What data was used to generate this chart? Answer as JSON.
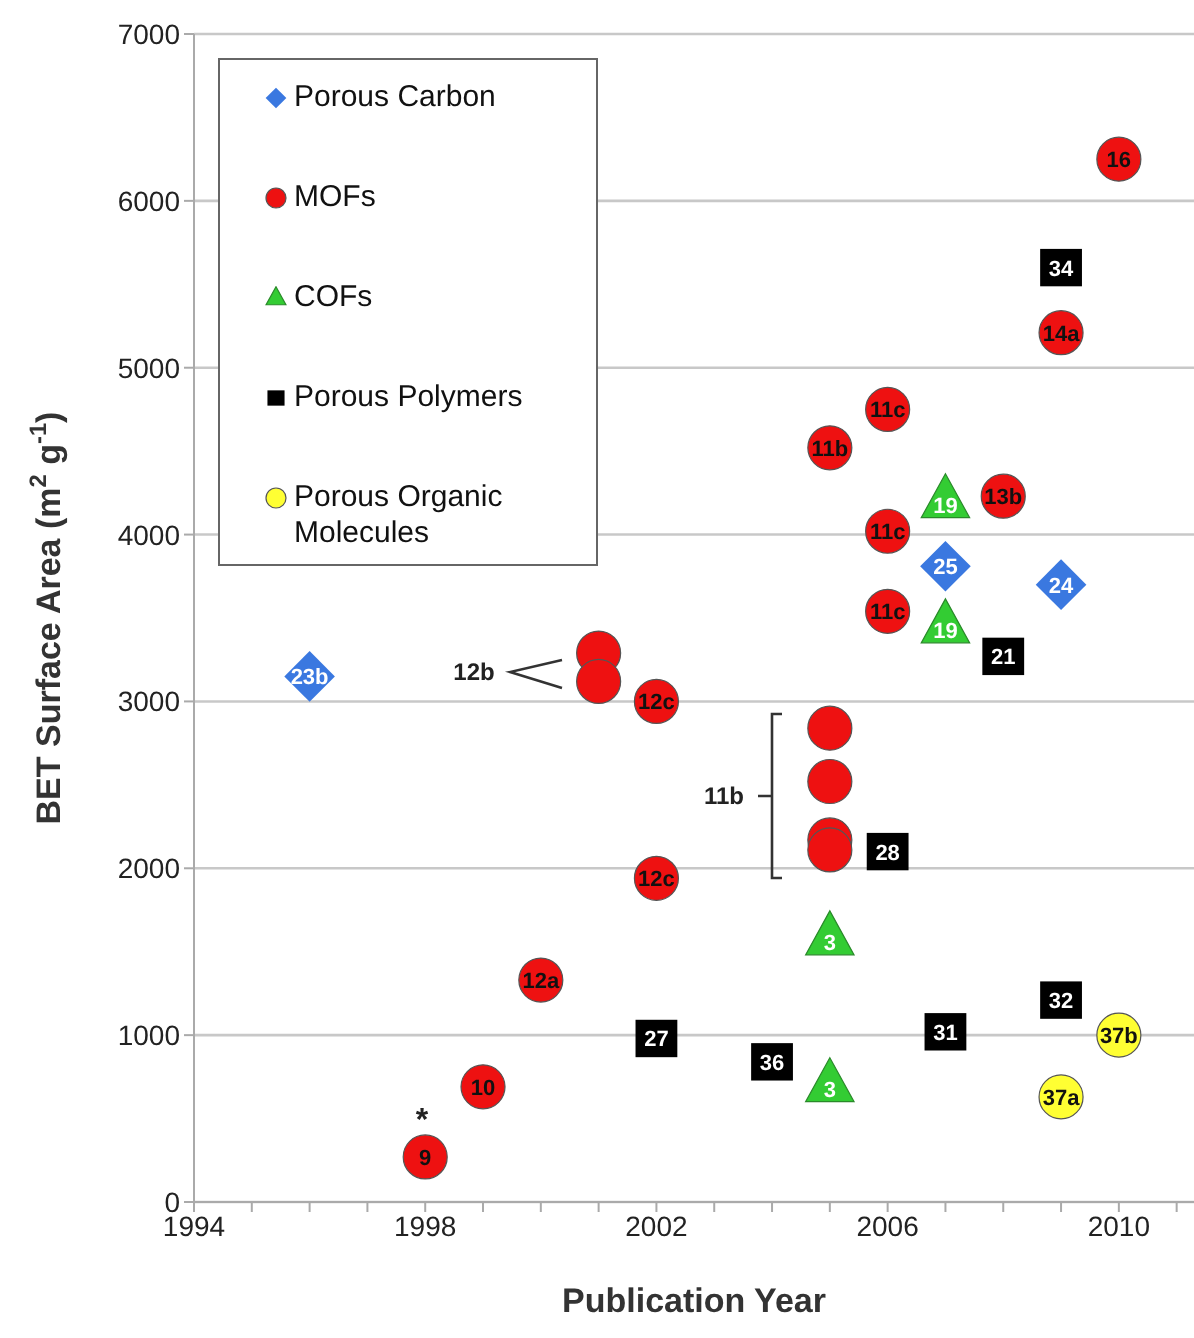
{
  "chart_data": {
    "type": "scatter",
    "xlabel": "Publication Year",
    "ylabel": "BET Surface Area (m$^{2}$ g$^{-1}$)",
    "xlim": [
      1994,
      2011.3
    ],
    "ylim": [
      0,
      7000
    ],
    "xticks": [
      1994,
      {
        "value": 1995,
        "label": null
      },
      {
        "value": 1996,
        "label": null
      },
      {
        "value": 1997,
        "label": null
      },
      1998,
      {
        "value": 1999,
        "label": null
      },
      {
        "value": 2000,
        "label": null
      },
      {
        "value": 2001,
        "label": null
      },
      2002,
      {
        "value": 2003,
        "label": null
      },
      {
        "value": 2004,
        "label": null
      },
      {
        "value": 2005,
        "label": null
      },
      2006,
      {
        "value": 2007,
        "label": null
      },
      {
        "value": 2008,
        "label": null
      },
      {
        "value": 2009,
        "label": null
      },
      2010,
      {
        "value": 2011,
        "label": null
      }
    ],
    "yticks": [
      0,
      1000,
      2000,
      3000,
      4000,
      5000,
      6000,
      7000
    ],
    "grid": "y",
    "legend": "top left",
    "series": [
      {
        "name": "Porous Carbon",
        "color": "#3a78e0",
        "marker": "diamond",
        "x": [
          1996,
          2007,
          2009
        ],
        "values": [
          3150,
          3810,
          3700
        ]
      },
      {
        "name": "MOFs",
        "color": "#ee1111",
        "marker": "circle",
        "x": [
          1998,
          1999,
          2000,
          2001,
          2001,
          2002,
          2002,
          2005,
          2005,
          2005,
          2005,
          2005,
          2006,
          2006,
          2006,
          2008,
          2009,
          2010
        ],
        "values": [
          270,
          690,
          1330,
          3290,
          3120,
          3000,
          1940,
          4520,
          2840,
          2520,
          2170,
          2110,
          4750,
          4020,
          3540,
          4230,
          5210,
          6250
        ]
      },
      {
        "name": "COFs",
        "color": "#33cc33",
        "marker": "triangle",
        "x": [
          2005,
          2005,
          2007,
          2007
        ],
        "values": [
          1580,
          700,
          4200,
          3450
        ]
      },
      {
        "name": "Porous Polymers",
        "color": "#000000",
        "marker": "square",
        "x": [
          2002,
          2004,
          2006,
          2007,
          2008,
          2009,
          2009
        ],
        "values": [
          980,
          840,
          2100,
          1020,
          3270,
          1210,
          5600
        ]
      },
      {
        "name": "Porous Organic Molecules",
        "color": "#ffff33",
        "marker": "circle",
        "x": [
          2009,
          2010
        ],
        "values": [
          630,
          1000
        ]
      }
    ],
    "annotations": [
      {
        "text": "23b",
        "x": 1996,
        "y": 3150
      },
      {
        "text": "25",
        "x": 2007,
        "y": 3810
      },
      {
        "text": "24",
        "x": 2009,
        "y": 3700
      },
      {
        "text": "9",
        "x": 1998,
        "y": 270
      },
      {
        "text": "10",
        "x": 1999,
        "y": 690
      },
      {
        "text": "12a",
        "x": 2000,
        "y": 1330
      },
      {
        "text": "12c",
        "x": 2002,
        "y": 3000
      },
      {
        "text": "12c",
        "x": 2002,
        "y": 1940
      },
      {
        "text": "11b",
        "x": 2005,
        "y": 4520
      },
      {
        "text": "11c",
        "x": 2006,
        "y": 4750
      },
      {
        "text": "11c",
        "x": 2006,
        "y": 4020
      },
      {
        "text": "11c",
        "x": 2006,
        "y": 3540
      },
      {
        "text": "13b",
        "x": 2008,
        "y": 4230
      },
      {
        "text": "14a",
        "x": 2009,
        "y": 5210
      },
      {
        "text": "16",
        "x": 2010,
        "y": 6250
      },
      {
        "text": "3",
        "x": 2005,
        "y": 1580
      },
      {
        "text": "3",
        "x": 2005,
        "y": 700
      },
      {
        "text": "19",
        "x": 2007,
        "y": 4200
      },
      {
        "text": "19",
        "x": 2007,
        "y": 3450
      },
      {
        "text": "27",
        "x": 2002,
        "y": 980
      },
      {
        "text": "36",
        "x": 2004,
        "y": 840
      },
      {
        "text": "28",
        "x": 2006,
        "y": 2100
      },
      {
        "text": "31",
        "x": 2007,
        "y": 1020
      },
      {
        "text": "21",
        "x": 2008,
        "y": 3270
      },
      {
        "text": "32",
        "x": 2009,
        "y": 1210
      },
      {
        "text": "34",
        "x": 2009,
        "y": 5600
      },
      {
        "text": "37a",
        "x": 2009,
        "y": 630
      },
      {
        "text": "37b",
        "x": 2010,
        "y": 1000
      },
      "12b",
      "11b",
      "*"
    ]
  }
}
